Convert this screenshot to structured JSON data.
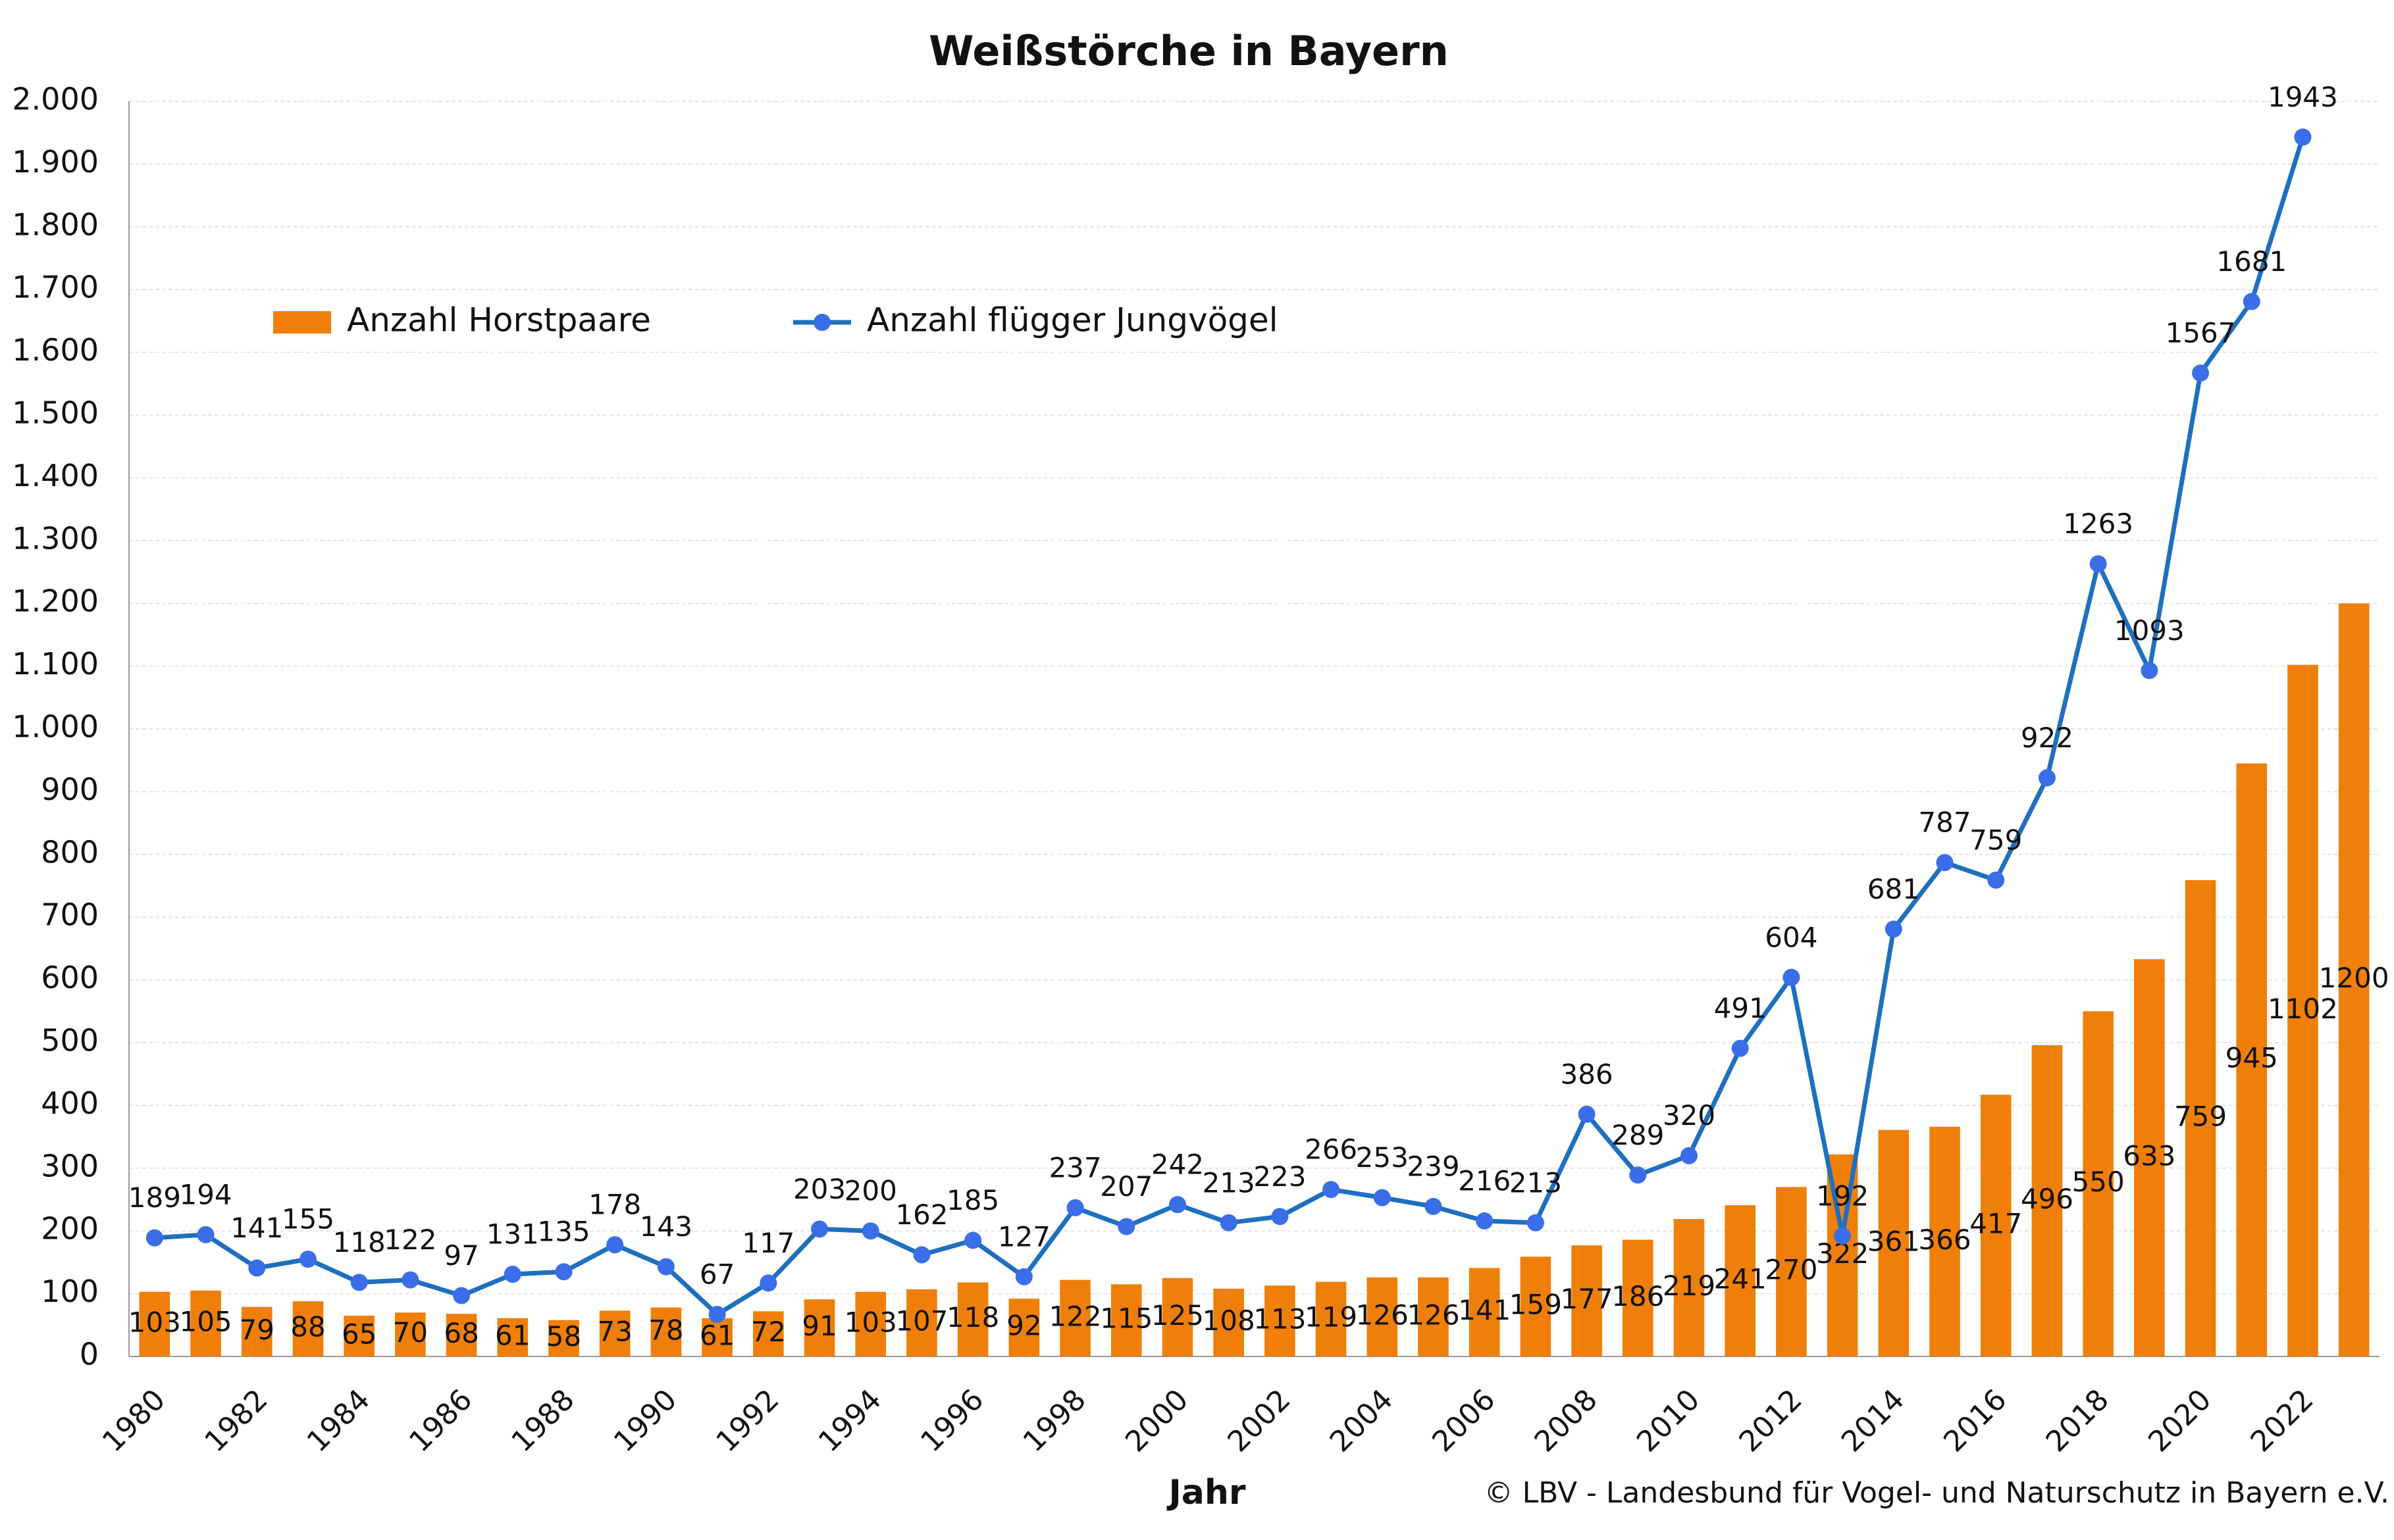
{
  "chart_data": {
    "type": "bar_line",
    "title": "Weißstörche in Bayern",
    "x_label": "Jahr",
    "note": "© LBV - Landesbund für Vogel- und Naturschutz in Bayern e.V.",
    "categories": [
      1980,
      null,
      1982,
      null,
      1984,
      null,
      1986,
      null,
      1988,
      null,
      1990,
      null,
      1992,
      null,
      1994,
      null,
      1996,
      null,
      1998,
      null,
      2000,
      null,
      2002,
      null,
      2004,
      null,
      2006,
      null,
      2008,
      null,
      2010,
      null,
      2012,
      null,
      2014,
      null,
      2016,
      null,
      2018,
      null,
      2020,
      null,
      2022,
      null
    ],
    "series": [
      {
        "name": "Anzahl Horstpaare",
        "type": "bar",
        "color": "#f07f09",
        "values": [
          103,
          105,
          79,
          88,
          65,
          70,
          68,
          61,
          58,
          73,
          78,
          61,
          72,
          91,
          103,
          107,
          118,
          92,
          122,
          115,
          125,
          108,
          113,
          119,
          126,
          126,
          141,
          159,
          177,
          186,
          219,
          241,
          270,
          322,
          361,
          366,
          417,
          496,
          550,
          633,
          759,
          945,
          1102,
          1200
        ]
      },
      {
        "name": "Anzahl flügger Jungvögel",
        "type": "line",
        "color": "#1f6fbf",
        "marker_color": "#3a6ee8",
        "values": [
          189,
          194,
          141,
          155,
          118,
          122,
          97,
          131,
          135,
          178,
          143,
          67,
          117,
          203,
          200,
          162,
          185,
          127,
          237,
          207,
          242,
          213,
          223,
          266,
          253,
          239,
          216,
          213,
          386,
          289,
          320,
          491,
          604,
          192,
          681,
          787,
          759,
          922,
          1263,
          1093,
          1567,
          1681,
          1943,
          null
        ]
      }
    ],
    "ylim": [
      0,
      2000
    ],
    "yticks": [
      0,
      100,
      200,
      300,
      400,
      500,
      600,
      700,
      800,
      900,
      {
        "value": 1000,
        "label": "1.000"
      },
      {
        "value": 1100,
        "label": "1.100"
      },
      {
        "value": 1200,
        "label": "1.200"
      },
      {
        "value": 1300,
        "label": "1.300"
      },
      {
        "value": 1400,
        "label": "1.400"
      },
      {
        "value": 1500,
        "label": "1.500"
      },
      {
        "value": 1600,
        "label": "1.600"
      },
      {
        "value": 1700,
        "label": "1.700"
      },
      {
        "value": 1800,
        "label": "1.800"
      },
      {
        "value": 1900,
        "label": "1.900"
      },
      {
        "value": 2000,
        "label": "2.000"
      }
    ],
    "grid": true,
    "legend": "top-left"
  }
}
